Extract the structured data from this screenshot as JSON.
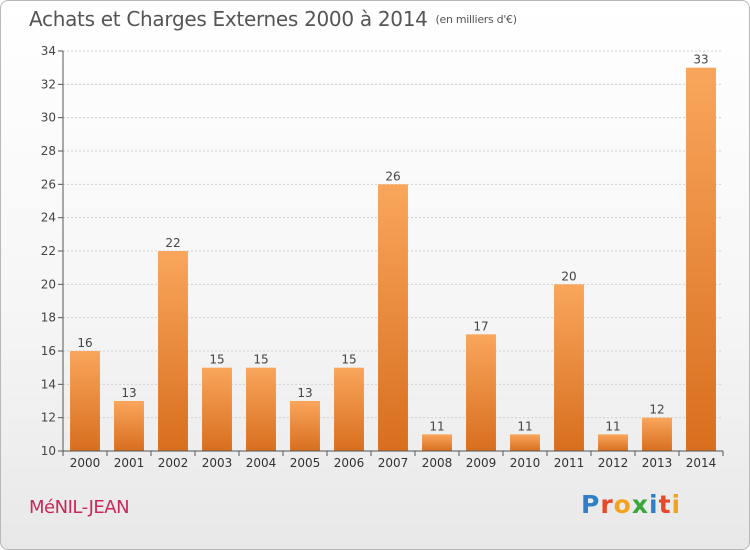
{
  "header": {
    "title": "Achats et Charges Externes 2000 à 2014",
    "unit": "(en milliers d'€)"
  },
  "footer": {
    "place": "MéNIL-JEAN",
    "brand": "Proxiti"
  },
  "colors": {
    "bar_light": "#f9a65c",
    "bar_dark": "#d86e1e",
    "grid": "#cccccc",
    "place": "#c8285a"
  },
  "chart_data": {
    "type": "bar",
    "title": "Achats et Charges Externes 2000 à 2014",
    "subtitle": "(en milliers d'€)",
    "categories": [
      "2000",
      "2001",
      "2002",
      "2003",
      "2004",
      "2005",
      "2006",
      "2007",
      "2008",
      "2009",
      "2010",
      "2011",
      "2012",
      "2013",
      "2014"
    ],
    "values": [
      16,
      13,
      22,
      15,
      15,
      13,
      15,
      26,
      11,
      17,
      11,
      20,
      11,
      12,
      33
    ],
    "ylim": [
      10,
      34
    ],
    "yticks": [
      10,
      12,
      14,
      16,
      18,
      20,
      22,
      24,
      26,
      28,
      30,
      32,
      34
    ],
    "grid": true,
    "data_labels": true
  }
}
